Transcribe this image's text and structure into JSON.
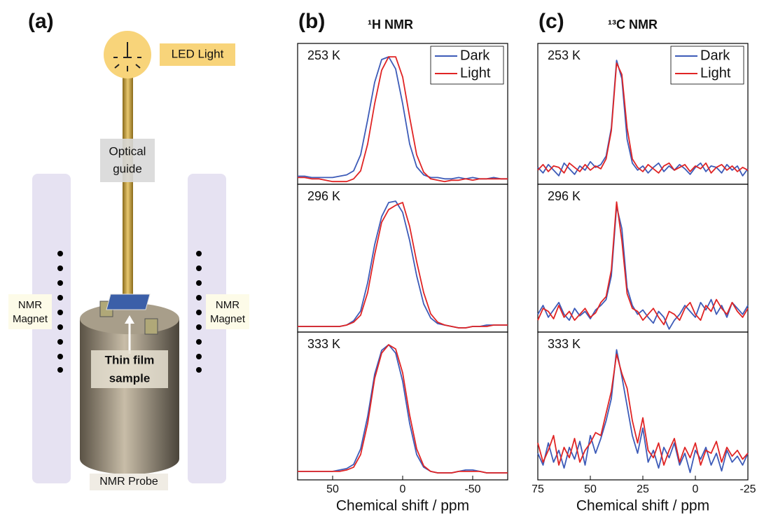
{
  "diagram": {
    "panel_label": "(a)",
    "led_light": "LED Light",
    "optical_guide": [
      "Optical",
      "guide"
    ],
    "left_magnet": [
      "NMR",
      "Magnet"
    ],
    "right_magnet": [
      "NMR",
      "Magnet"
    ],
    "sample": [
      "Thin film",
      "sample"
    ],
    "probe": "NMR Probe"
  },
  "chart_data": [
    {
      "type": "line",
      "panel_label": "(b)",
      "title": "¹H NMR",
      "annotation": "253 K",
      "legend": "upper right",
      "x": [
        75,
        70,
        65,
        60,
        55,
        50,
        45,
        40,
        35,
        30,
        25,
        20,
        15,
        10,
        5,
        0,
        -5,
        -10,
        -15,
        -20,
        -25,
        -30,
        -35,
        -40,
        -45,
        -50,
        -55,
        -60,
        -65,
        -70,
        -75
      ],
      "xlim": [
        75,
        -75
      ],
      "ylim": [
        0,
        1.05
      ],
      "series": [
        {
          "name": "Dark",
          "color": "#3d5bb8",
          "values": [
            0.06,
            0.06,
            0.05,
            0.05,
            0.05,
            0.05,
            0.06,
            0.07,
            0.1,
            0.22,
            0.48,
            0.76,
            0.93,
            0.95,
            0.86,
            0.6,
            0.3,
            0.13,
            0.07,
            0.05,
            0.05,
            0.04,
            0.04,
            0.05,
            0.04,
            0.05,
            0.04,
            0.04,
            0.05,
            0.04,
            0.04
          ]
        },
        {
          "name": "Light",
          "color": "#e02424",
          "values": [
            0.05,
            0.05,
            0.04,
            0.04,
            0.03,
            0.02,
            0.02,
            0.02,
            0.04,
            0.1,
            0.3,
            0.6,
            0.85,
            0.95,
            0.95,
            0.8,
            0.5,
            0.22,
            0.09,
            0.04,
            0.03,
            0.02,
            0.03,
            0.03,
            0.04,
            0.03,
            0.04,
            0.04,
            0.04,
            0.04,
            0.04
          ]
        }
      ]
    },
    {
      "type": "line",
      "annotation": "296 K",
      "x": [
        75,
        70,
        65,
        60,
        55,
        50,
        45,
        40,
        35,
        30,
        25,
        20,
        15,
        10,
        5,
        0,
        -5,
        -10,
        -15,
        -20,
        -25,
        -30,
        -35,
        -40,
        -45,
        -50,
        -55,
        -60,
        -65,
        -70,
        -75
      ],
      "xlim": [
        75,
        -75
      ],
      "ylim": [
        0,
        1.05
      ],
      "series": [
        {
          "name": "Dark",
          "color": "#3d5bb8",
          "values": [
            0.04,
            0.04,
            0.04,
            0.04,
            0.04,
            0.04,
            0.04,
            0.05,
            0.08,
            0.15,
            0.35,
            0.62,
            0.82,
            0.92,
            0.93,
            0.85,
            0.65,
            0.4,
            0.2,
            0.1,
            0.06,
            0.05,
            0.04,
            0.03,
            0.03,
            0.04,
            0.04,
            0.05,
            0.05,
            0.05,
            0.05
          ]
        },
        {
          "name": "Light",
          "color": "#e02424",
          "values": [
            0.04,
            0.04,
            0.04,
            0.04,
            0.04,
            0.04,
            0.04,
            0.05,
            0.07,
            0.12,
            0.28,
            0.55,
            0.78,
            0.87,
            0.9,
            0.92,
            0.75,
            0.5,
            0.28,
            0.13,
            0.07,
            0.05,
            0.04,
            0.03,
            0.03,
            0.04,
            0.04,
            0.04,
            0.05,
            0.05,
            0.05
          ]
        }
      ]
    },
    {
      "type": "line",
      "annotation": "333 K",
      "x_label": "Chemical shift / ppm",
      "x": [
        75,
        70,
        65,
        60,
        55,
        50,
        45,
        40,
        35,
        30,
        25,
        20,
        15,
        10,
        5,
        0,
        -5,
        -10,
        -15,
        -20,
        -25,
        -30,
        -35,
        -40,
        -45,
        -50,
        -55,
        -60,
        -65,
        -70,
        -75
      ],
      "xlim": [
        75,
        -75
      ],
      "xticks": [
        50,
        0,
        -50
      ],
      "ylim": [
        0,
        1.05
      ],
      "series": [
        {
          "name": "Dark",
          "color": "#3d5bb8",
          "values": [
            0.06,
            0.06,
            0.06,
            0.06,
            0.06,
            0.06,
            0.07,
            0.08,
            0.11,
            0.22,
            0.45,
            0.75,
            0.92,
            0.96,
            0.9,
            0.7,
            0.4,
            0.18,
            0.09,
            0.06,
            0.05,
            0.05,
            0.05,
            0.06,
            0.07,
            0.07,
            0.06,
            0.05,
            0.05,
            0.05,
            0.05
          ]
        },
        {
          "name": "Light",
          "color": "#e02424",
          "values": [
            0.06,
            0.06,
            0.06,
            0.06,
            0.06,
            0.06,
            0.06,
            0.07,
            0.09,
            0.18,
            0.4,
            0.72,
            0.9,
            0.96,
            0.93,
            0.76,
            0.46,
            0.22,
            0.1,
            0.06,
            0.05,
            0.05,
            0.05,
            0.06,
            0.06,
            0.06,
            0.06,
            0.05,
            0.05,
            0.05,
            0.05
          ]
        }
      ]
    },
    {
      "type": "line",
      "panel_label": "(c)",
      "title": "¹³C NMR",
      "annotation": "253 K",
      "legend": "upper right",
      "x": [
        75,
        72.5,
        70,
        67.5,
        65,
        62.5,
        60,
        57.5,
        55,
        52.5,
        50,
        47.5,
        45,
        42.5,
        40,
        37.5,
        35,
        32.5,
        30,
        27.5,
        25,
        22.5,
        20,
        17.5,
        15,
        12.5,
        10,
        7.5,
        5,
        2.5,
        0,
        -2.5,
        -5,
        -7.5,
        -10,
        -12.5,
        -15,
        -17.5,
        -20,
        -22.5,
        -25
      ],
      "xlim": [
        75,
        -25
      ],
      "ylim": [
        0,
        1
      ],
      "series": [
        {
          "name": "Dark",
          "color": "#3d5bb8",
          "values": [
            0.12,
            0.08,
            0.14,
            0.1,
            0.06,
            0.15,
            0.11,
            0.07,
            0.13,
            0.1,
            0.16,
            0.12,
            0.14,
            0.2,
            0.4,
            0.88,
            0.75,
            0.32,
            0.15,
            0.1,
            0.13,
            0.08,
            0.12,
            0.15,
            0.09,
            0.13,
            0.1,
            0.14,
            0.11,
            0.07,
            0.12,
            0.15,
            0.09,
            0.13,
            0.12,
            0.08,
            0.14,
            0.1,
            0.13,
            0.06,
            0.11
          ]
        },
        {
          "name": "Light",
          "color": "#e02424",
          "values": [
            0.1,
            0.14,
            0.09,
            0.13,
            0.12,
            0.08,
            0.15,
            0.12,
            0.09,
            0.14,
            0.1,
            0.13,
            0.11,
            0.18,
            0.38,
            0.86,
            0.78,
            0.4,
            0.18,
            0.12,
            0.09,
            0.14,
            0.11,
            0.08,
            0.13,
            0.15,
            0.1,
            0.12,
            0.14,
            0.09,
            0.13,
            0.11,
            0.15,
            0.08,
            0.12,
            0.14,
            0.1,
            0.13,
            0.09,
            0.12,
            0.1
          ]
        }
      ]
    },
    {
      "type": "line",
      "annotation": "296 K",
      "x": [
        75,
        72.5,
        70,
        67.5,
        65,
        62.5,
        60,
        57.5,
        55,
        52.5,
        50,
        47.5,
        45,
        42.5,
        40,
        37.5,
        35,
        32.5,
        30,
        27.5,
        25,
        22.5,
        20,
        17.5,
        15,
        12.5,
        10,
        7.5,
        5,
        2.5,
        0,
        -2.5,
        -5,
        -7.5,
        -10,
        -12.5,
        -15,
        -17.5,
        -20,
        -22.5,
        -25
      ],
      "xlim": [
        75,
        -25
      ],
      "ylim": [
        0,
        1
      ],
      "series": [
        {
          "name": "Dark",
          "color": "#3d5bb8",
          "values": [
            0.12,
            0.18,
            0.1,
            0.15,
            0.2,
            0.12,
            0.08,
            0.16,
            0.11,
            0.14,
            0.09,
            0.15,
            0.18,
            0.22,
            0.38,
            0.85,
            0.7,
            0.3,
            0.18,
            0.12,
            0.15,
            0.1,
            0.06,
            0.14,
            0.1,
            0.02,
            0.08,
            0.12,
            0.18,
            0.14,
            0.1,
            0.2,
            0.15,
            0.22,
            0.12,
            0.18,
            0.1,
            0.2,
            0.16,
            0.12,
            0.18
          ]
        },
        {
          "name": "Light",
          "color": "#e02424",
          "values": [
            0.08,
            0.16,
            0.14,
            0.09,
            0.18,
            0.1,
            0.14,
            0.08,
            0.12,
            0.16,
            0.1,
            0.13,
            0.2,
            0.24,
            0.42,
            0.88,
            0.62,
            0.26,
            0.16,
            0.14,
            0.08,
            0.12,
            0.16,
            0.1,
            0.05,
            0.14,
            0.12,
            0.08,
            0.16,
            0.2,
            0.12,
            0.08,
            0.18,
            0.14,
            0.22,
            0.16,
            0.12,
            0.2,
            0.14,
            0.1,
            0.16
          ]
        }
      ]
    },
    {
      "type": "line",
      "annotation": "333 K",
      "x_label": "Chemical shift / ppm",
      "x": [
        75,
        72.5,
        70,
        67.5,
        65,
        62.5,
        60,
        57.5,
        55,
        52.5,
        50,
        47.5,
        45,
        42.5,
        40,
        37.5,
        35,
        32.5,
        30,
        27.5,
        25,
        22.5,
        20,
        17.5,
        15,
        12.5,
        10,
        7.5,
        5,
        2.5,
        0,
        -2.5,
        -5,
        -7.5,
        -10,
        -12.5,
        -15,
        -17.5,
        -20,
        -22.5,
        -25
      ],
      "xlim": [
        75,
        -25
      ],
      "xticks": [
        75,
        50,
        25,
        0,
        -25
      ],
      "ylim": [
        0,
        1
      ],
      "series": [
        {
          "name": "Dark",
          "color": "#3d5bb8",
          "values": [
            0.18,
            0.1,
            0.25,
            0.12,
            0.2,
            0.08,
            0.22,
            0.14,
            0.26,
            0.1,
            0.3,
            0.18,
            0.28,
            0.4,
            0.55,
            0.88,
            0.7,
            0.5,
            0.3,
            0.18,
            0.35,
            0.12,
            0.2,
            0.08,
            0.22,
            0.15,
            0.25,
            0.1,
            0.18,
            0.05,
            0.2,
            0.14,
            0.22,
            0.1,
            0.18,
            0.06,
            0.2,
            0.12,
            0.16,
            0.1,
            0.18
          ]
        },
        {
          "name": "Light",
          "color": "#e02424",
          "values": [
            0.25,
            0.12,
            0.2,
            0.3,
            0.1,
            0.22,
            0.15,
            0.28,
            0.12,
            0.2,
            0.25,
            0.32,
            0.3,
            0.45,
            0.6,
            0.85,
            0.72,
            0.62,
            0.4,
            0.25,
            0.42,
            0.2,
            0.15,
            0.25,
            0.1,
            0.2,
            0.28,
            0.12,
            0.22,
            0.15,
            0.25,
            0.1,
            0.2,
            0.18,
            0.26,
            0.12,
            0.22,
            0.16,
            0.2,
            0.14,
            0.18
          ]
        }
      ]
    }
  ]
}
